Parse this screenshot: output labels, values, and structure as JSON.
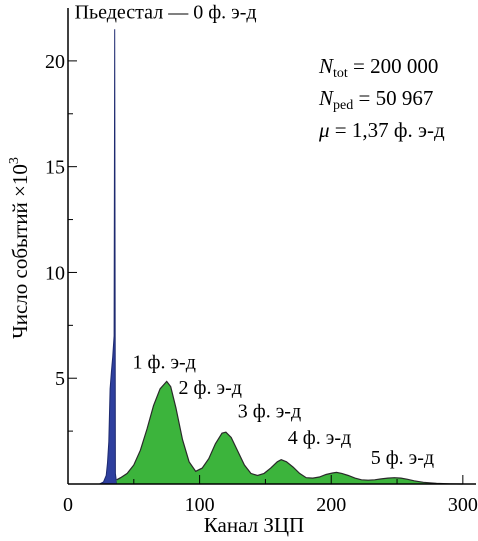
{
  "chart_data": {
    "type": "area",
    "xlabel": "Канал ЗЦП",
    "ylabel": "Число событий ×10",
    "ylabel_exp": "3",
    "xlim": [
      0,
      310
    ],
    "ylim": [
      0,
      22.5
    ],
    "xticks": [
      0,
      100,
      200,
      300
    ],
    "yticks": [
      5,
      10,
      15,
      20
    ],
    "x_minor_step": 50,
    "y_minor_step": 2.5,
    "grid": false,
    "colors": {
      "pedestal": "#2e3f9e",
      "signal": "#3cb43c",
      "outline": "#2a2a2a"
    },
    "series": [
      {
        "name": "Пьедестал — 0 ф. э-д",
        "x": [
          24,
          27,
          29,
          30,
          31,
          32,
          33,
          34,
          35,
          35.5,
          36,
          37
        ],
        "y": [
          0,
          0.1,
          0.4,
          1.0,
          2.0,
          4.5,
          5.3,
          6.0,
          7.0,
          21.5,
          0.5,
          0
        ]
      },
      {
        "name": "signal",
        "x": [
          37,
          40,
          45,
          50,
          55,
          60,
          65,
          70,
          75,
          78,
          82,
          87,
          92,
          97,
          102,
          107,
          112,
          117,
          120,
          124,
          129,
          134,
          139,
          144,
          149,
          154,
          159,
          162,
          166,
          171,
          176,
          181,
          186,
          191,
          196,
          201,
          204,
          208,
          213,
          218,
          223,
          228,
          233,
          238,
          243,
          248,
          253,
          258,
          263,
          270,
          280,
          290,
          300
        ],
        "y": [
          0.2,
          0.3,
          0.5,
          0.9,
          1.6,
          2.6,
          3.7,
          4.5,
          4.85,
          4.6,
          3.6,
          2.1,
          1.05,
          0.6,
          0.75,
          1.2,
          1.9,
          2.4,
          2.45,
          2.2,
          1.55,
          0.9,
          0.5,
          0.4,
          0.5,
          0.75,
          1.05,
          1.15,
          1.05,
          0.8,
          0.5,
          0.3,
          0.28,
          0.33,
          0.45,
          0.52,
          0.55,
          0.5,
          0.4,
          0.28,
          0.2,
          0.18,
          0.2,
          0.24,
          0.28,
          0.3,
          0.28,
          0.22,
          0.15,
          0.08,
          0.03,
          0.01,
          0
        ]
      }
    ],
    "peak_labels": [
      {
        "text": "Пьедестал — 0 ф. э-д",
        "x": 5,
        "y": 22.0
      },
      {
        "text": "1 ф. э-д",
        "x": 49,
        "y": 5.45
      },
      {
        "text": "2 ф. э-д",
        "x": 84,
        "y": 4.25
      },
      {
        "text": "3 ф. э-д",
        "x": 129,
        "y": 3.15
      },
      {
        "text": "4 ф. э-д",
        "x": 167,
        "y": 1.9
      },
      {
        "text": "5 ф. э-д",
        "x": 230,
        "y": 0.95
      }
    ]
  },
  "stats": {
    "ntot_symbol": "N",
    "ntot_sub": "tot",
    "ntot_value": " = 200 000",
    "nped_symbol": "N",
    "nped_sub": "ped",
    "nped_value": " = 50 967",
    "mu_symbol": "μ",
    "mu_value": " = 1,37 ф. э-д"
  }
}
